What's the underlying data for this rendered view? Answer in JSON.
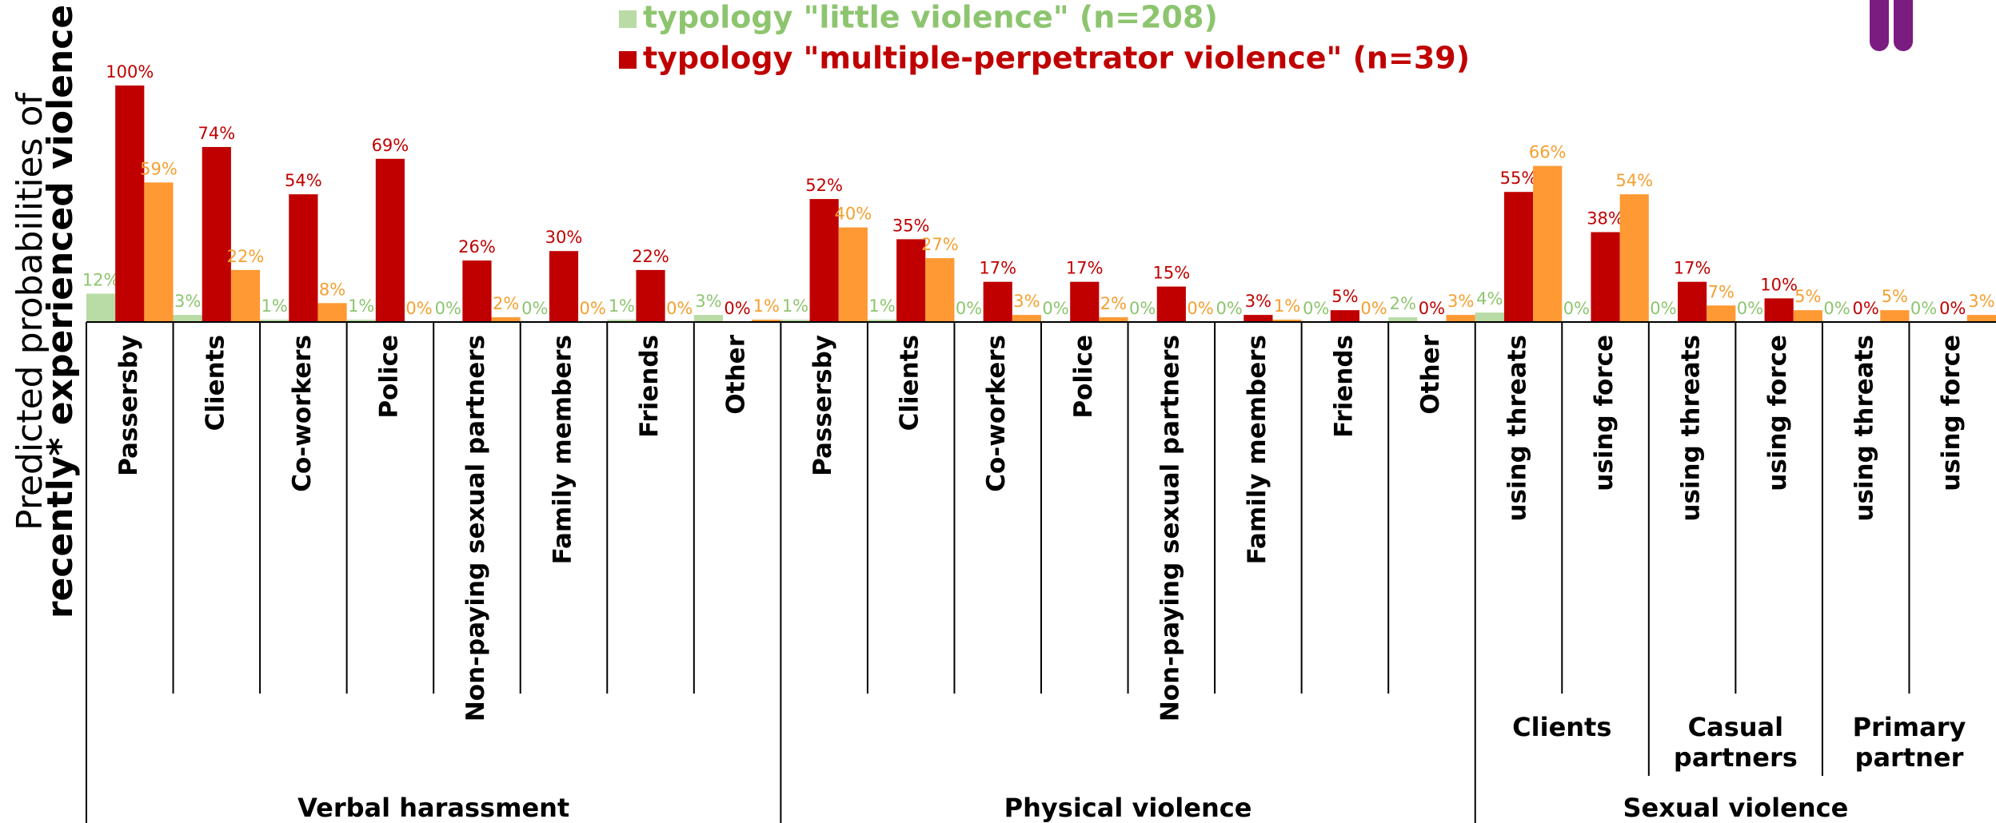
{
  "chart_data": {
    "type": "bar",
    "y_label": [
      "Predicted probabilities of",
      "recently* experienced violence"
    ],
    "ylim": [
      0,
      100
    ],
    "groups": [
      {
        "label": [
          "Verbal harassment"
        ],
        "categories": [
          "Passersby",
          "Clients",
          "Co-workers",
          "Police",
          "Non-paying sexual partners",
          "Family members",
          "Friends",
          "Other"
        ]
      },
      {
        "label": [
          "Physical violence"
        ],
        "categories": [
          "Passersby",
          "Clients",
          "Co-workers",
          "Police",
          "Non-paying sexual partners",
          "Family members",
          "Friends",
          "Other"
        ]
      },
      {
        "label": [
          "Sexual violence"
        ],
        "subgroups": [
          {
            "label": [
              "Clients"
            ],
            "categories": [
              "using threats",
              "using force"
            ]
          },
          {
            "label": [
              "Casual",
              "partners"
            ],
            "categories": [
              "using threats",
              "using force"
            ]
          },
          {
            "label": [
              "Primary",
              "partner"
            ],
            "categories": [
              "using threats",
              "using force"
            ]
          }
        ]
      }
    ],
    "series": [
      {
        "name": "typology \"little violence\" (n=208)",
        "color": "#b9dca6",
        "label_color": "#8dc56f",
        "values": [
          12,
          3,
          1,
          1,
          0,
          0,
          1,
          3,
          1,
          1,
          0,
          0,
          0,
          0,
          0,
          2,
          4,
          0,
          0,
          0,
          0,
          0
        ],
        "value_labels": [
          "12%",
          "3%",
          "1%",
          "1%",
          "0%",
          "0%",
          "1%",
          "3%",
          "1%",
          "1%",
          "0%",
          "0%",
          "0%",
          "0%",
          "0%",
          "2%",
          "4%",
          "0%",
          "0%",
          "0%",
          "0%",
          "0%"
        ]
      },
      {
        "name": "typology \"multiple-perpetrator violence\" (n=39)",
        "color": "#c00000",
        "label_color": "#c00000",
        "values": [
          100,
          74,
          54,
          69,
          26,
          30,
          22,
          0,
          52,
          35,
          17,
          17,
          15,
          3,
          5,
          0,
          55,
          38,
          17,
          10,
          0,
          0
        ],
        "value_labels": [
          "100%",
          "74%",
          "54%",
          "69%",
          "26%",
          "30%",
          "22%",
          "0%",
          "52%",
          "35%",
          "17%",
          "17%",
          "15%",
          "3%",
          "5%",
          "0%",
          "55%",
          "38%",
          "17%",
          "10%",
          "0%",
          "0%"
        ]
      },
      {
        "color": "#ff9933",
        "label_color": "#f4a031",
        "values": [
          59,
          22,
          8,
          0,
          2,
          0,
          0,
          1,
          40,
          27,
          3,
          2,
          0,
          1,
          0,
          3,
          66,
          54,
          7,
          5,
          5,
          3
        ],
        "value_labels": [
          "59%",
          "22%",
          "8%",
          "0%",
          "2%",
          "0%",
          "0%",
          "1%",
          "40%",
          "27%",
          "3%",
          "2%",
          "0%",
          "1%",
          "0%",
          "3%",
          "66%",
          "54%",
          "7%",
          "5%",
          "5%",
          "3%"
        ]
      }
    ]
  }
}
